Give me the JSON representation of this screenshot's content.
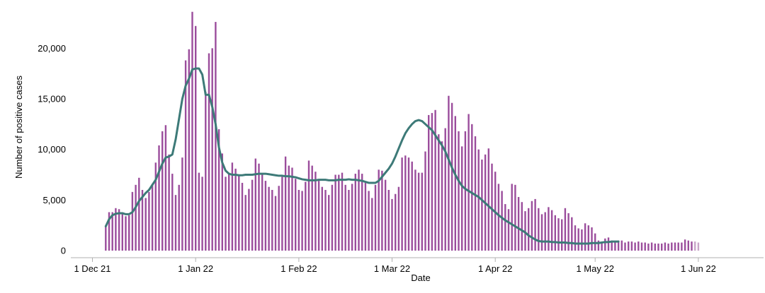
{
  "chart_data": {
    "type": "bar",
    "title": "",
    "xlabel": "Date",
    "ylabel": "Number of positive cases",
    "grid": false,
    "legend": "none",
    "x_start": "2021-12-05",
    "x_ticks": [
      "1 Dec 21",
      "1 Jan 22",
      "1 Feb 22",
      "1 Mar 22",
      "1 Apr 22",
      "1 May 22",
      "1 Jun 22"
    ],
    "y_ticks": [
      "0",
      "5,000",
      "10,000",
      "15,000",
      "20,000"
    ],
    "ylim": [
      0,
      24000
    ],
    "series": [
      {
        "kind": "bar",
        "values": [
          2500,
          3800,
          3800,
          4200,
          4100,
          3700,
          3400,
          3500,
          5800,
          6500,
          7200,
          6000,
          5200,
          5800,
          6600,
          8700,
          10400,
          11800,
          12400,
          9500,
          7600,
          5500,
          6500,
          9200,
          18800,
          19900,
          23600,
          22200,
          7700,
          7300,
          15700,
          19500,
          20000,
          22600,
          12000,
          9600,
          7300,
          7700,
          8700,
          8100,
          7500,
          6700,
          5500,
          6100,
          7000,
          9100,
          8600,
          7500,
          6900,
          6300,
          6000,
          5400,
          6400,
          7300,
          9300,
          8400,
          8200,
          7100,
          6000,
          5900,
          6800,
          8900,
          8400,
          7800,
          6900,
          6300,
          6000,
          5500,
          6500,
          7500,
          7500,
          7700,
          6500,
          6000,
          6600,
          7600,
          8000,
          7600,
          6700,
          5900,
          5200,
          6500,
          8000,
          7900,
          7000,
          6000,
          5100,
          5600,
          6300,
          9200,
          9400,
          9200,
          8800,
          8000,
          7700,
          7700,
          9800,
          13400,
          13600,
          13900,
          11500,
          10800,
          12100,
          15300,
          14600,
          13300,
          11800,
          10300,
          11800,
          13500,
          12500,
          11300,
          10000,
          9000,
          9500,
          10100,
          8600,
          7800,
          6600,
          5900,
          4600,
          4100,
          6600,
          6500,
          5300,
          4800,
          3900,
          4200,
          4900,
          5100,
          4200,
          3600,
          3800,
          4300,
          4000,
          3500,
          3200,
          3100,
          4200,
          3700,
          3300,
          2500,
          2200,
          2100,
          2700,
          2500,
          2300,
          1700,
          1000,
          900,
          1200,
          1300,
          1000,
          900,
          1000,
          1000,
          800,
          900,
          900,
          800,
          900,
          800,
          800,
          700,
          800,
          700,
          700,
          700,
          800,
          700,
          800,
          800,
          800,
          800,
          1100,
          1000,
          900,
          900,
          800
        ]
      },
      {
        "kind": "line",
        "values": [
          2400,
          3100,
          3500,
          3650,
          3700,
          3700,
          3600,
          3600,
          3800,
          4300,
          4900,
          5300,
          5700,
          6000,
          6500,
          7000,
          7800,
          8600,
          9200,
          9300,
          9500,
          11000,
          13000,
          15000,
          16300,
          17000,
          17900,
          18000,
          18000,
          17400,
          15400,
          15400,
          14200,
          12500,
          10200,
          8700,
          7900,
          7600,
          7500,
          7500,
          7450,
          7450,
          7500,
          7500,
          7500,
          7550,
          7600,
          7600,
          7600,
          7550,
          7500,
          7450,
          7400,
          7400,
          7350,
          7350,
          7300,
          7250,
          7150,
          7050,
          7000,
          6950,
          6950,
          6950,
          7000,
          7000,
          7000,
          6950,
          6950,
          6950,
          7000,
          7000,
          7000,
          7050,
          7000,
          7000,
          6950,
          6900,
          6800,
          6700,
          6700,
          6700,
          6900,
          7300,
          7700,
          8100,
          8600,
          9300,
          10100,
          10900,
          11600,
          12100,
          12500,
          12800,
          12900,
          12800,
          12500,
          12200,
          11900,
          11400,
          10900,
          10400,
          9800,
          9000,
          8200,
          7500,
          6900,
          6400,
          6100,
          5900,
          5700,
          5500,
          5300,
          5000,
          4700,
          4400,
          4100,
          3800,
          3500,
          3250,
          3000,
          2800,
          2600,
          2400,
          2200,
          2000,
          1800,
          1500,
          1300,
          1100,
          950,
          900,
          900,
          900,
          850,
          850,
          800,
          800,
          800,
          750,
          750,
          700,
          700,
          700,
          700,
          700,
          750,
          750,
          750,
          800,
          850,
          850,
          900,
          900,
          900
        ]
      }
    ]
  },
  "colors": {
    "bar": "#9b4d9c",
    "bar_provisional": "#c9a6c9",
    "line": "#3d7a78",
    "axis": "#b0b0b0"
  }
}
